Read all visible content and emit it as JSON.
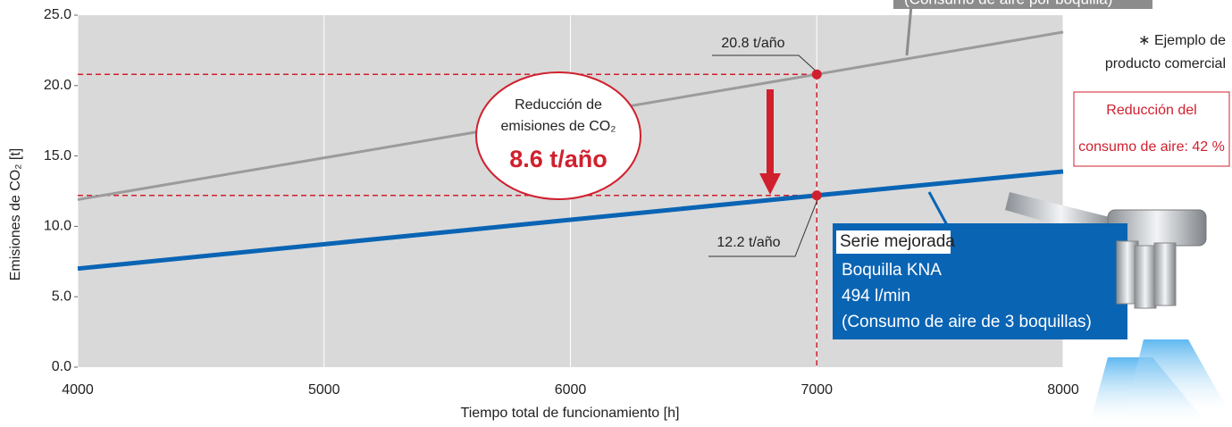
{
  "chart_data": {
    "type": "line",
    "x_label": "Tiempo total de funcionamiento [h]",
    "y_label": "Emisiones de CO₂ [t]",
    "x": [
      4000,
      7000,
      8000
    ],
    "series": [
      {
        "name": "(Consumo de aire por boquilla)",
        "color": "#9b9b9b",
        "values": [
          11.9,
          20.8,
          23.8
        ]
      },
      {
        "name": "Serie mejorada",
        "color": "#0a64b4",
        "values": [
          7.0,
          12.2,
          13.9
        ]
      }
    ],
    "xlim": [
      4000,
      8000
    ],
    "xticks": [
      4000,
      5000,
      6000,
      7000,
      8000
    ],
    "ylim": [
      0,
      25
    ],
    "yticks": [
      {
        "value": 0,
        "label": "0.0"
      },
      {
        "value": 5,
        "label": "5.0"
      },
      {
        "value": 10,
        "label": "10.0"
      },
      {
        "value": 15,
        "label": "15.0"
      },
      {
        "value": 20,
        "label": "20.0"
      },
      {
        "value": 25,
        "label": "25.0"
      }
    ],
    "grid": "x",
    "point_labels": [
      "20.8 t/año",
      "12.2 t/año"
    ],
    "bubble": {
      "lines": [
        "Reducción de",
        "emisiones de CO₂"
      ],
      "value": "8.6 t/año"
    },
    "blue_box_lines": [
      "Boquilla KNA",
      "494 l/min",
      "(Consumo de aire de 3 boquillas)"
    ],
    "note": [
      "∗ Ejemplo de",
      "producto comercial"
    ],
    "reduction_box": [
      "Reducción del",
      "consumo de aire: 42 %"
    ]
  }
}
